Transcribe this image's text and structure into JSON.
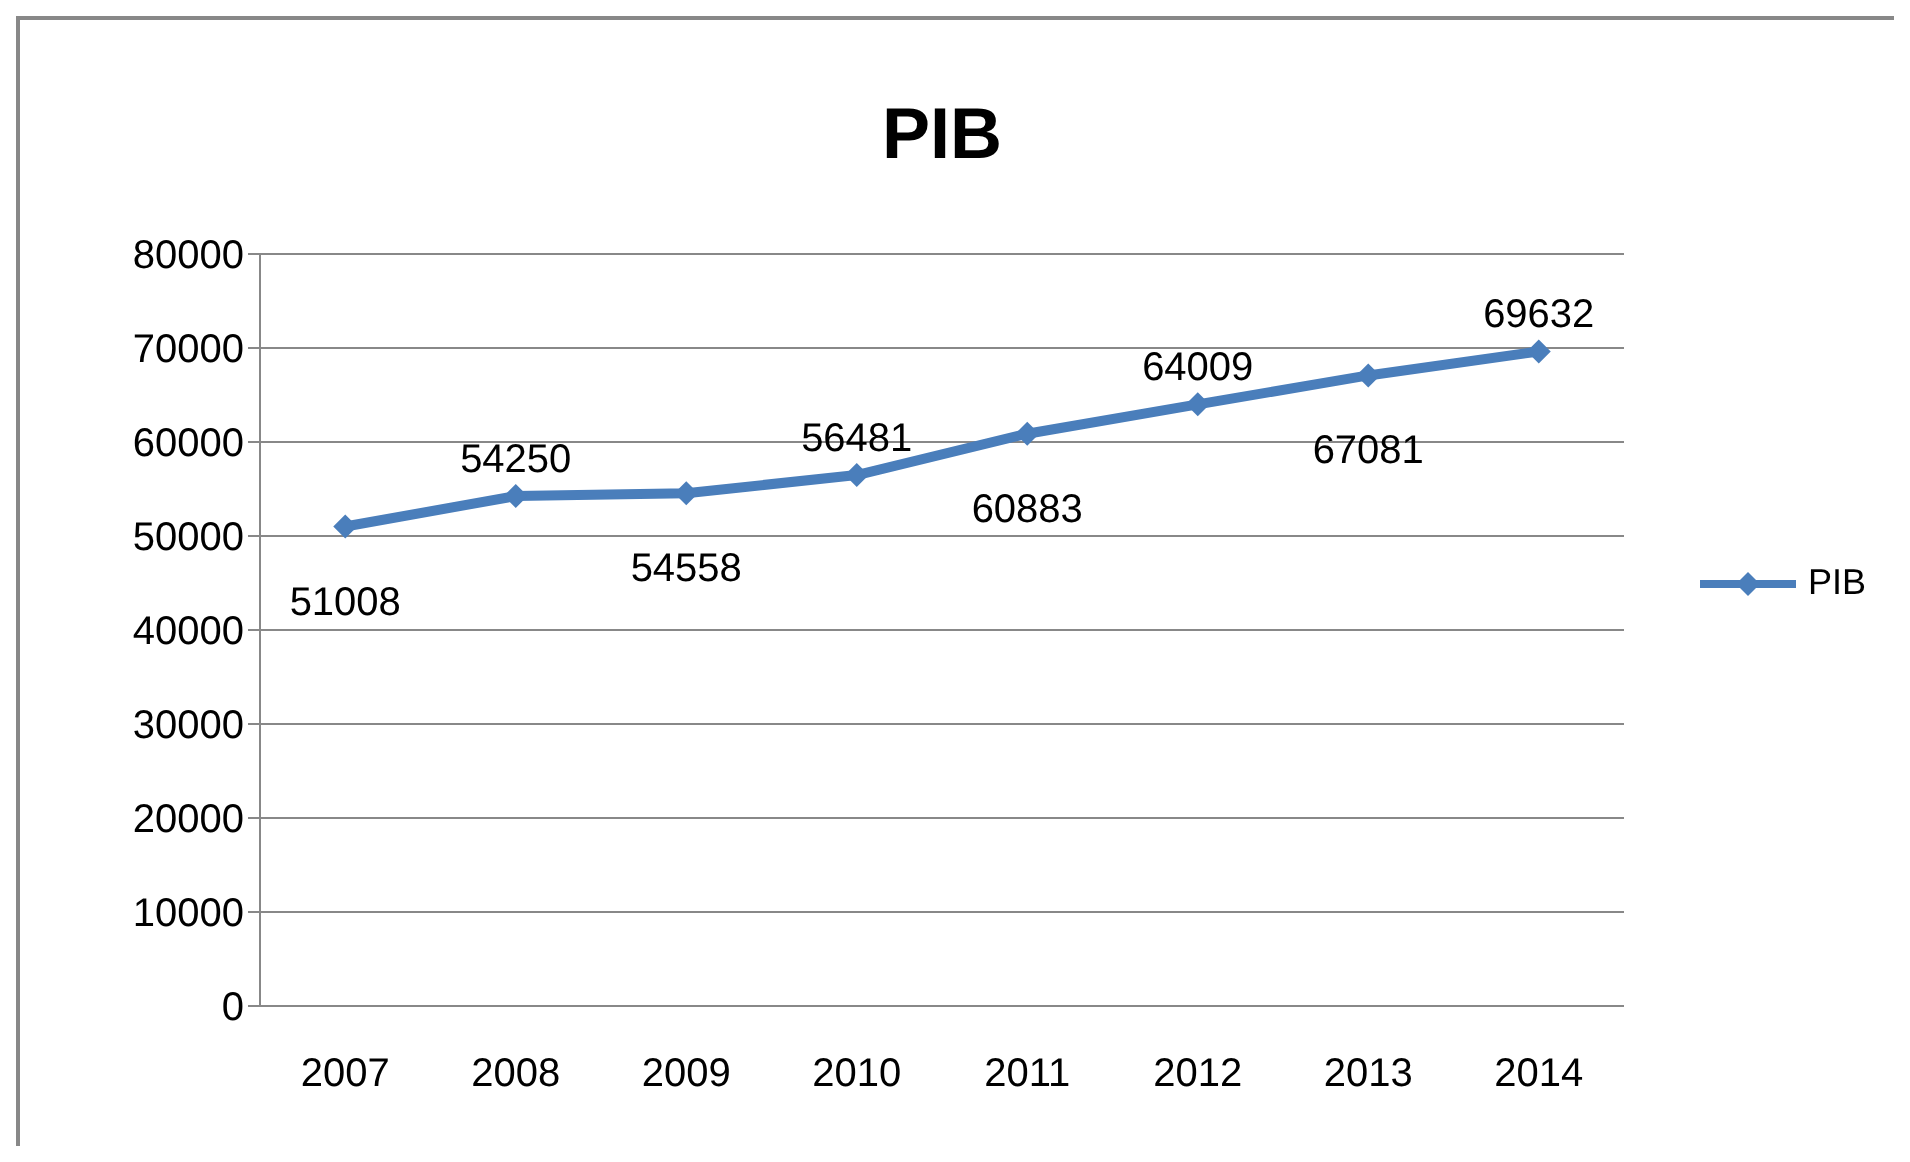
{
  "chart_data": {
    "type": "line",
    "title": "PIB",
    "categories": [
      "2007",
      "2008",
      "2009",
      "2010",
      "2011",
      "2012",
      "2013",
      "2014"
    ],
    "series": [
      {
        "name": "PIB",
        "color": "#4a7ebb",
        "values": [
          51008,
          54250,
          54558,
          56481,
          60883,
          64009,
          67081,
          69632
        ]
      }
    ],
    "ylim": [
      0,
      80000
    ],
    "yticks": [
      0,
      10000,
      20000,
      30000,
      40000,
      50000,
      60000,
      70000,
      80000
    ],
    "grid": "y",
    "legend": "right",
    "marker": "diamond",
    "line_style": "solid",
    "data_labels": true
  }
}
